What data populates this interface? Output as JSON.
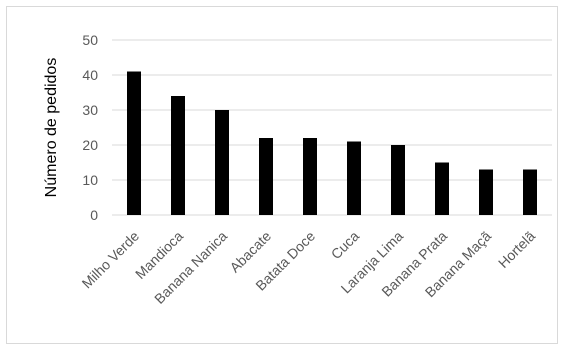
{
  "chart_data": {
    "type": "bar",
    "categories": [
      "Milho Verde",
      "Mandioca",
      "Banana Nanica",
      "Abacate",
      "Batata Doce",
      "Cuca",
      "Laranja Lima",
      "Banana Prata",
      "Banana Maçã",
      "Hortelã"
    ],
    "values": [
      41,
      34,
      30,
      22,
      22,
      21,
      20,
      15,
      13,
      13
    ],
    "title": "",
    "xlabel": "",
    "ylabel": "Número de pedidos",
    "ylim": [
      0,
      50
    ],
    "yticks": [
      0,
      10,
      20,
      30,
      40,
      50
    ],
    "grid": true,
    "legend": "none",
    "colors": {
      "bar": "#000000",
      "grid": "#d9d9d9",
      "text": "#595959"
    }
  }
}
